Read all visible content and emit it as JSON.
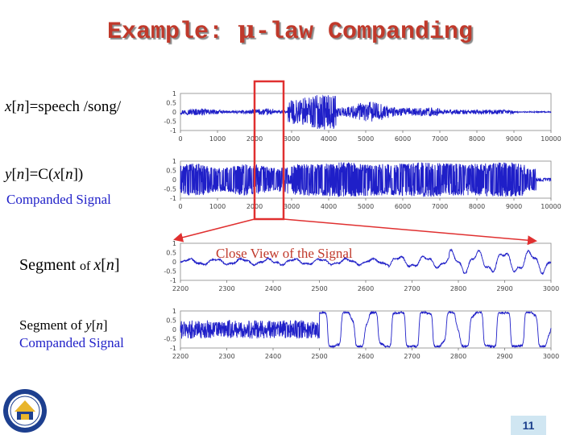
{
  "slide": {
    "title_prefix": "Example: ",
    "title_mu": "μ",
    "title_suffix": "-law Companding",
    "page_number": "11"
  },
  "labels": {
    "x_signal": {
      "var": "x",
      "idx": "n",
      "rest": "=speech /song/"
    },
    "y_signal": {
      "var": "y",
      "idx": "n",
      "eq": "=C(",
      "var2": "x",
      "idx2": "n",
      "close": "])"
    },
    "companded_signal": "Companded Signal",
    "segment_x": {
      "prefix": "Segment ",
      "of": "of ",
      "var": "x",
      "idx": "n"
    },
    "segment_y": {
      "prefix": "Segment of  ",
      "var": "y",
      "idx": "n"
    },
    "companded_signal_2": "Companded Signal",
    "close_view": "Close View of the Signal"
  },
  "colors": {
    "title": "#c0392b",
    "signal": "#1f1fc8",
    "highlight": "#e03030",
    "label_blue": "#1f1fc8"
  },
  "icons": {
    "logo": "university-seal-icon"
  },
  "chart_data": [
    {
      "type": "line",
      "name": "x-signal-full",
      "xlim": [
        0,
        10000
      ],
      "ylim": [
        -1,
        1
      ],
      "xticks": [
        "0",
        "1000",
        "2000",
        "3000",
        "4000",
        "5000",
        "6000",
        "7000",
        "8000",
        "9000",
        "10000"
      ],
      "yticks": [
        "1",
        "0.5",
        "0",
        "-0.5",
        "-1"
      ],
      "highlight_range": [
        2200,
        3000
      ]
    },
    {
      "type": "line",
      "name": "y-signal-full",
      "xlim": [
        0,
        10000
      ],
      "ylim": [
        -1,
        1
      ],
      "xticks": [
        "0",
        "1000",
        "2000",
        "3000",
        "4000",
        "5000",
        "6000",
        "7000",
        "8000",
        "9000",
        "10000"
      ],
      "yticks": [
        "1",
        "0.5",
        "0",
        "-0.5",
        "-1"
      ]
    },
    {
      "type": "line",
      "name": "x-segment",
      "xlim": [
        2200,
        3000
      ],
      "ylim": [
        -1,
        1
      ],
      "xticks": [
        "2200",
        "2300",
        "2400",
        "2500",
        "2600",
        "2700",
        "2800",
        "2900",
        "3000"
      ],
      "yticks": [
        "1",
        "0.5",
        "0",
        "-0.5",
        "-1"
      ]
    },
    {
      "type": "line",
      "name": "y-segment",
      "xlim": [
        2200,
        3000
      ],
      "ylim": [
        -1,
        1
      ],
      "xticks": [
        "2200",
        "2300",
        "2400",
        "2500",
        "2600",
        "2700",
        "2800",
        "2900",
        "3000"
      ],
      "yticks": [
        "1",
        "0.5",
        "0",
        "-0.5",
        "-1"
      ]
    }
  ]
}
